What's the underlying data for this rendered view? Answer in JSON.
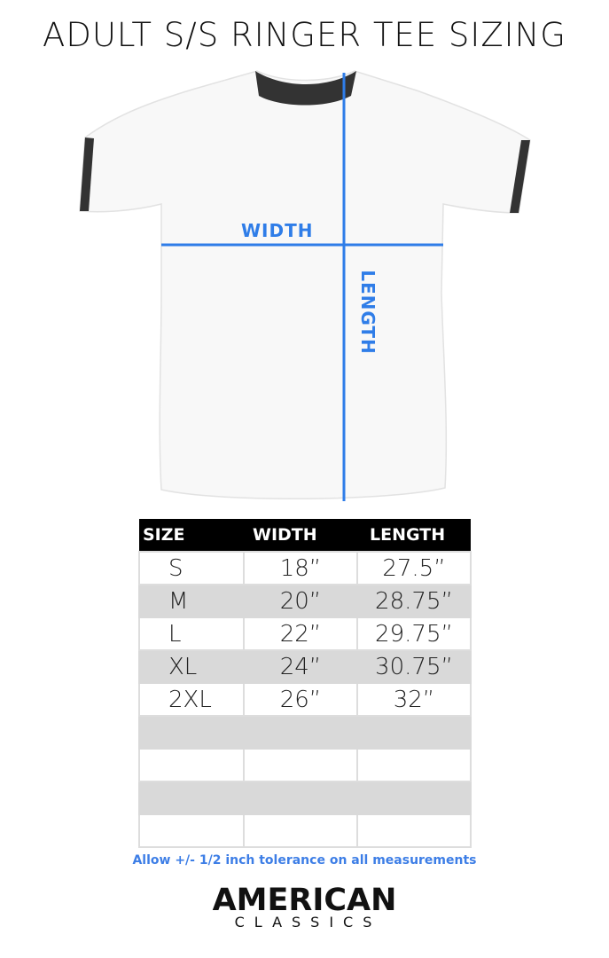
{
  "title": "ADULT S/S RINGER TEE SIZING",
  "diagram": {
    "width_label": "WIDTH",
    "length_label": "LENGTH",
    "guide_color": "#2f7de8",
    "ringer_color": "#333333"
  },
  "table": {
    "headers": [
      "SIZE",
      "WIDTH",
      "LENGTH"
    ],
    "rows": [
      [
        "S",
        "18”",
        "27.5”"
      ],
      [
        "M",
        "20”",
        "28.75”"
      ],
      [
        "L",
        "22”",
        "29.75”"
      ],
      [
        "XL",
        "24”",
        "30.75”"
      ],
      [
        "2XL",
        "26”",
        "32”"
      ],
      [
        "",
        "",
        ""
      ],
      [
        "",
        "",
        ""
      ],
      [
        "",
        "",
        ""
      ],
      [
        "",
        "",
        ""
      ]
    ]
  },
  "note": "Allow +/- 1/2 inch tolerance on all measurements",
  "logo": {
    "line1": "AMERICAN",
    "line2": "CLASSICS"
  }
}
